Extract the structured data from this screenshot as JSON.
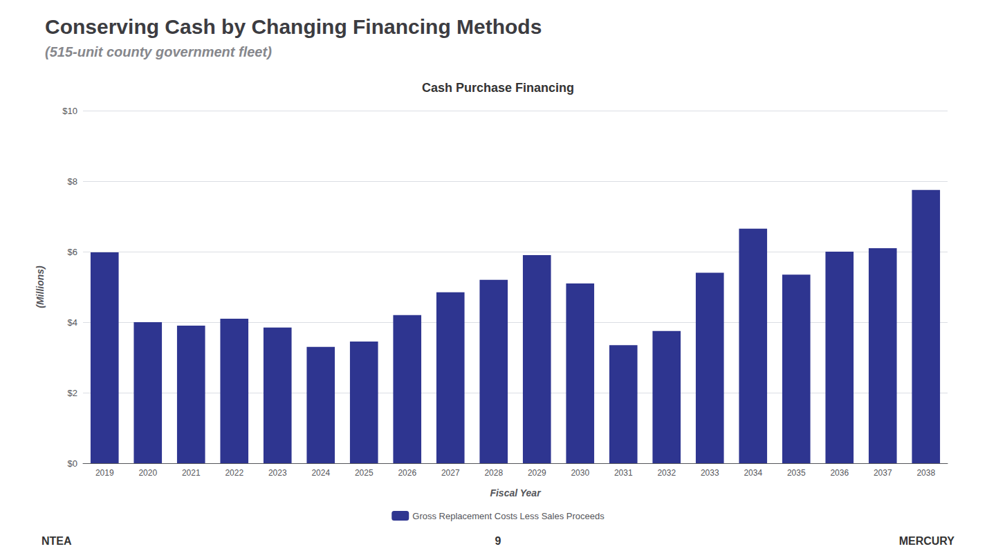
{
  "chart_data": {
    "type": "bar",
    "title": "Conserving Cash by Changing Financing Methods",
    "subtitle": "(515-unit county government fleet)",
    "annotations": [
      "Cash Purchase Financing",
      "NTEA",
      "9",
      "MERCURY"
    ],
    "xlabel": "Fiscal Year",
    "ylabel": "(Millions)",
    "categories": [
      "2019",
      "2020",
      "2021",
      "2022",
      "2023",
      "2024",
      "2025",
      "2026",
      "2027",
      "2028",
      "2029",
      "2030",
      "2031",
      "2032",
      "2033",
      "2034",
      "2035",
      "2036",
      "2037",
      "2038"
    ],
    "series": [
      {
        "name": "Gross Replacement Costs Less Sales Proceeds",
        "color": "#2E3590",
        "values": [
          5.98,
          4.0,
          3.9,
          4.1,
          3.85,
          3.3,
          3.45,
          4.2,
          4.85,
          5.2,
          5.9,
          5.1,
          3.35,
          3.75,
          5.4,
          6.65,
          5.35,
          6.0,
          6.1,
          7.75
        ]
      }
    ],
    "ylim": [
      0,
      10
    ],
    "yticks": [
      {
        "value": 0,
        "label": "$0"
      },
      {
        "value": 2,
        "label": "$2"
      },
      {
        "value": 4,
        "label": "$4"
      },
      {
        "value": 6,
        "label": "$6"
      },
      {
        "value": 8,
        "label": "$8"
      },
      {
        "value": 10,
        "label": "$10"
      }
    ],
    "grid": true,
    "legend": "bottom"
  }
}
